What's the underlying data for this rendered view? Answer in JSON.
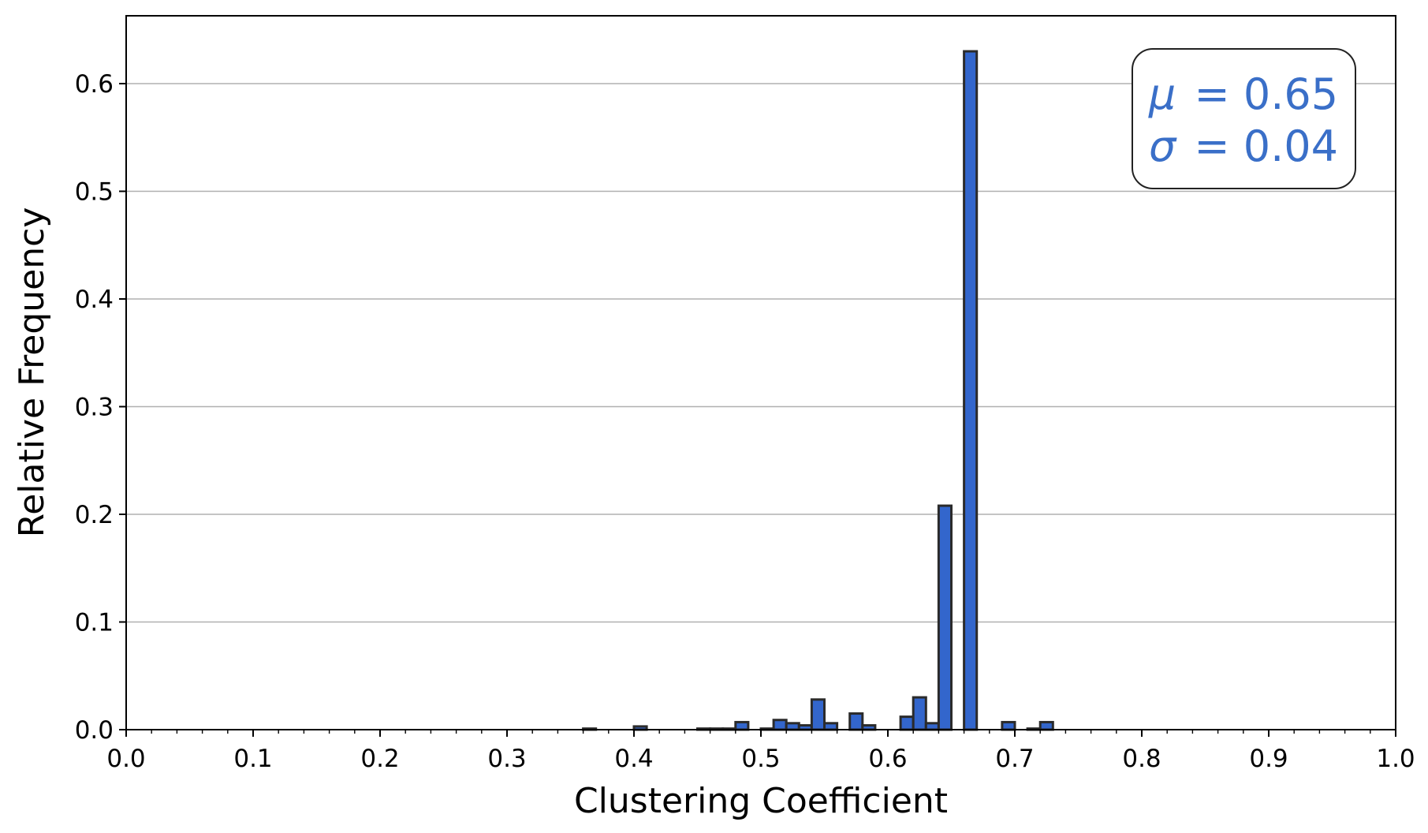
{
  "chart_data": {
    "type": "bar",
    "title": "",
    "xlabel": "Clustering Coefficient",
    "ylabel": "Relative Frequency",
    "xlim": [
      0.0,
      1.0
    ],
    "ylim": [
      0.0,
      0.663
    ],
    "bin_width": 0.01,
    "x_ticks": [
      "0.0",
      "0.1",
      "0.2",
      "0.3",
      "0.4",
      "0.5",
      "0.6",
      "0.7",
      "0.8",
      "0.9",
      "1.0"
    ],
    "y_ticks": [
      "0.0",
      "0.1",
      "0.2",
      "0.3",
      "0.4",
      "0.5",
      "0.6"
    ],
    "grid": "horizontal",
    "bar_color": "#3366cc",
    "edge_color": "#2b2b2b",
    "series": [
      {
        "bins": [
          {
            "x": 0.36,
            "value": 0.001
          },
          {
            "x": 0.4,
            "value": 0.003
          },
          {
            "x": 0.45,
            "value": 0.001
          },
          {
            "x": 0.46,
            "value": 0.001
          },
          {
            "x": 0.47,
            "value": 0.001
          },
          {
            "x": 0.48,
            "value": 0.007
          },
          {
            "x": 0.5,
            "value": 0.001
          },
          {
            "x": 0.51,
            "value": 0.009
          },
          {
            "x": 0.52,
            "value": 0.006
          },
          {
            "x": 0.53,
            "value": 0.004
          },
          {
            "x": 0.54,
            "value": 0.028
          },
          {
            "x": 0.55,
            "value": 0.006
          },
          {
            "x": 0.57,
            "value": 0.015
          },
          {
            "x": 0.58,
            "value": 0.004
          },
          {
            "x": 0.61,
            "value": 0.012
          },
          {
            "x": 0.62,
            "value": 0.03
          },
          {
            "x": 0.63,
            "value": 0.006
          },
          {
            "x": 0.64,
            "value": 0.208
          },
          {
            "x": 0.66,
            "value": 0.63
          },
          {
            "x": 0.69,
            "value": 0.007
          },
          {
            "x": 0.71,
            "value": 0.001
          },
          {
            "x": 0.72,
            "value": 0.007
          }
        ]
      }
    ],
    "annotation": {
      "position": "top-right",
      "color": "#3a6fc8",
      "mu_symbol": "μ",
      "mu_value": "= 0.65",
      "sigma_symbol": "σ",
      "sigma_value": "= 0.04"
    }
  }
}
